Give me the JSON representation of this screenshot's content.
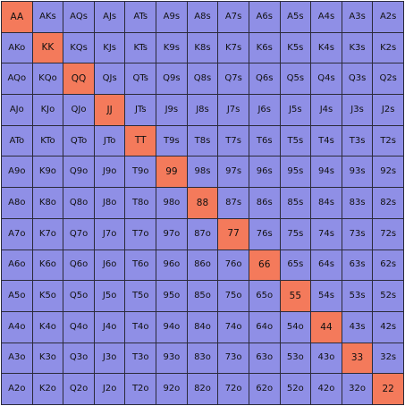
{
  "colors": {
    "default": "#8f8fe6",
    "highlight": "#f47a5b"
  },
  "rows": [
    [
      "AA",
      "AKs",
      "AQs",
      "AJs",
      "ATs",
      "A9s",
      "A8s",
      "A7s",
      "A6s",
      "A5s",
      "A4s",
      "A3s",
      "A2s"
    ],
    [
      "AKo",
      "KK",
      "KQs",
      "KJs",
      "KTs",
      "K9s",
      "K8s",
      "K7s",
      "K6s",
      "K5s",
      "K4s",
      "K3s",
      "K2s"
    ],
    [
      "AQo",
      "KQo",
      "QQ",
      "QJs",
      "QTs",
      "Q9s",
      "Q8s",
      "Q7s",
      "Q6s",
      "Q5s",
      "Q4s",
      "Q3s",
      "Q2s"
    ],
    [
      "AJo",
      "KJo",
      "QJo",
      "JJ",
      "JTs",
      "J9s",
      "J8s",
      "J7s",
      "J6s",
      "J5s",
      "J4s",
      "J3s",
      "J2s"
    ],
    [
      "ATo",
      "KTo",
      "QTo",
      "JTo",
      "TT",
      "T9s",
      "T8s",
      "T7s",
      "T6s",
      "T5s",
      "T4s",
      "T3s",
      "T2s"
    ],
    [
      "A9o",
      "K9o",
      "Q9o",
      "J9o",
      "T9o",
      "99",
      "98s",
      "97s",
      "96s",
      "95s",
      "94s",
      "93s",
      "92s"
    ],
    [
      "A8o",
      "K8o",
      "Q8o",
      "J8o",
      "T8o",
      "98o",
      "88",
      "87s",
      "86s",
      "85s",
      "84s",
      "83s",
      "82s"
    ],
    [
      "A7o",
      "K7o",
      "Q7o",
      "J7o",
      "T7o",
      "97o",
      "87o",
      "77",
      "76s",
      "75s",
      "74s",
      "73s",
      "72s"
    ],
    [
      "A6o",
      "K6o",
      "Q6o",
      "J6o",
      "T6o",
      "96o",
      "86o",
      "76o",
      "66",
      "65s",
      "64s",
      "63s",
      "62s"
    ],
    [
      "A5o",
      "K5o",
      "Q5o",
      "J5o",
      "T5o",
      "95o",
      "85o",
      "75o",
      "65o",
      "55",
      "54s",
      "53s",
      "52s"
    ],
    [
      "A4o",
      "K4o",
      "Q4o",
      "J4o",
      "T4o",
      "94o",
      "84o",
      "74o",
      "64o",
      "54o",
      "44",
      "43s",
      "42s"
    ],
    [
      "A3o",
      "K3o",
      "Q3o",
      "J3o",
      "T3o",
      "93o",
      "83o",
      "73o",
      "63o",
      "53o",
      "43o",
      "33",
      "32s"
    ],
    [
      "A2o",
      "K2o",
      "Q2o",
      "J2o",
      "T2o",
      "92o",
      "82o",
      "72o",
      "62o",
      "52o",
      "42o",
      "32o",
      "22"
    ]
  ],
  "highlighted": [
    "AA",
    "KK",
    "QQ",
    "JJ",
    "TT",
    "99",
    "88",
    "77",
    "66",
    "55",
    "44",
    "33",
    "22"
  ]
}
